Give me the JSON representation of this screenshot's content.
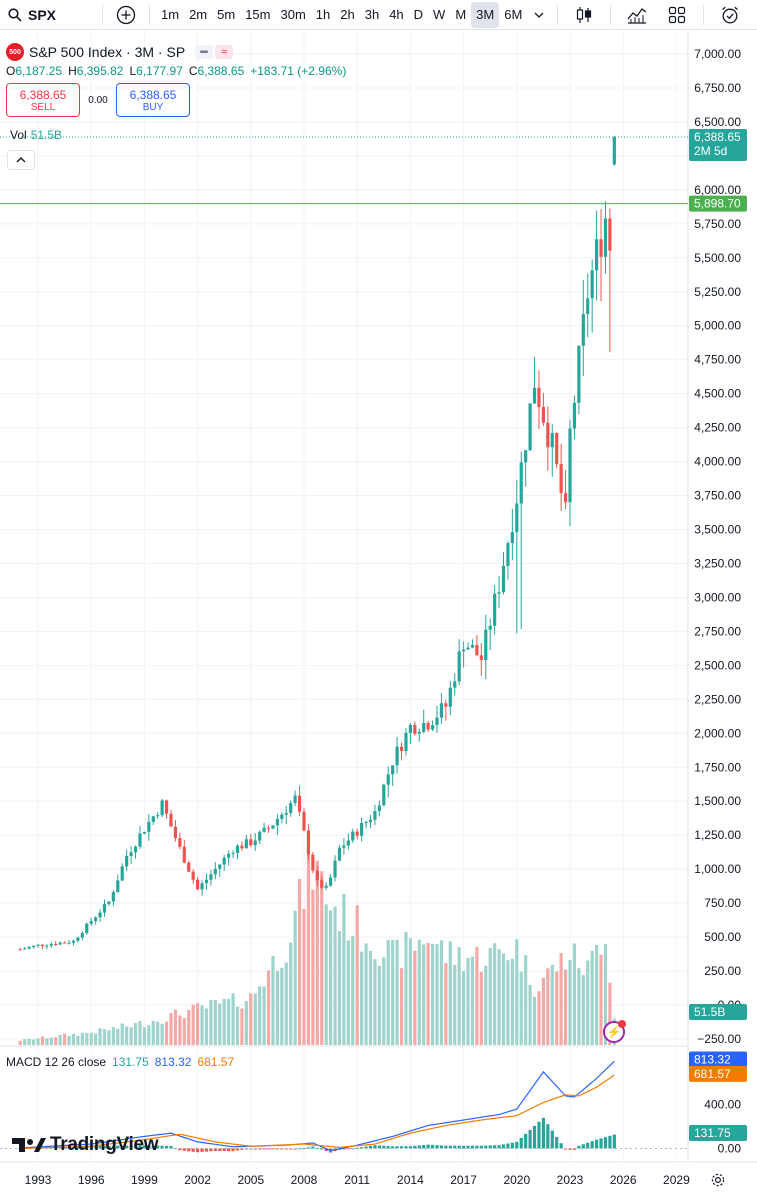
{
  "toolbar": {
    "symbol": "SPX",
    "timeframes": [
      "1m",
      "2m",
      "5m",
      "15m",
      "30m",
      "1h",
      "2h",
      "3h",
      "4h",
      "D",
      "W",
      "M",
      "3M",
      "6M"
    ],
    "active_timeframe": "3M"
  },
  "legend": {
    "logo_text": "500",
    "title": "S&P 500 Index · 3M · SP",
    "open_label": "O",
    "open": "6,187.25",
    "high_label": "H",
    "high": "6,395.82",
    "low_label": "L",
    "low": "6,177.97",
    "close_label": "C",
    "close": "6,388.65",
    "change": "+183.71 (+2.96%)",
    "sell_price": "6,388.65",
    "sell_label": "SELL",
    "spread": "0.00",
    "buy_price": "6,388.65",
    "buy_label": "BUY"
  },
  "volume_legend": {
    "label": "Vol",
    "value": "51.5B"
  },
  "macd_legend": {
    "label": "MACD 12 26 close",
    "hist": "131.75",
    "macd": "813.32",
    "signal": "681.57"
  },
  "brand": {
    "name": "TradingView"
  },
  "colors": {
    "up": "#26a69a",
    "down": "#ef5350",
    "vol_up": "#9fd4cd",
    "vol_down": "#f5a9a7",
    "macd": "#2962ff",
    "signal": "#f57c00",
    "hline": "#4caf50"
  },
  "chart_data": {
    "type": "candlestick",
    "symbol": "S&P 500 Index",
    "interval": "3M",
    "y_axis_ticks": [
      7000,
      6750,
      6500,
      6250,
      6000,
      5750,
      5500,
      5250,
      5000,
      4750,
      4500,
      4250,
      4000,
      3750,
      3500,
      3250,
      3000,
      2750,
      2500,
      2250,
      2000,
      1750,
      1500,
      1250,
      1000,
      750,
      500,
      250,
      0,
      -250
    ],
    "y_axis_tick_labels": [
      "7,000.00",
      "6,750.00",
      "6,500.00",
      "6,250.00",
      "6,000.00",
      "5,750.00",
      "5,500.00",
      "5,250.00",
      "5,000.00",
      "4,750.00",
      "4,500.00",
      "4,250.00",
      "4,000.00",
      "3,750.00",
      "3,500.00",
      "3,250.00",
      "3,000.00",
      "2,750.00",
      "2,500.00",
      "2,250.00",
      "2,000.00",
      "1,750.00",
      "1,500.00",
      "1,250.00",
      "1,000.00",
      "750.00",
      "500.00",
      "250.00",
      "0.00",
      "−250.00"
    ],
    "x_axis_ticks": [
      "1993",
      "1996",
      "1999",
      "2002",
      "2005",
      "2008",
      "2011",
      "2014",
      "2017",
      "2020",
      "2023",
      "2026",
      "2029"
    ],
    "price_ylim": [
      -250,
      7000
    ],
    "last_price": 6388.65,
    "last_price_label": "6,388.65",
    "last_price_countdown": "2M 5d",
    "horizontal_line": 5898.7,
    "horizontal_line_label": "5,898.70",
    "volume_last_label": "51.5B",
    "close_anchors": [
      [
        1992.0,
        410
      ],
      [
        1993.0,
        440
      ],
      [
        1995.0,
        470
      ],
      [
        1996.0,
        620
      ],
      [
        1997.0,
        760
      ],
      [
        1998.0,
        1100
      ],
      [
        1999.0,
        1300
      ],
      [
        2000.0,
        1480
      ],
      [
        2001.0,
        1150
      ],
      [
        2002.0,
        850
      ],
      [
        2003.0,
        1000
      ],
      [
        2004.0,
        1150
      ],
      [
        2005.0,
        1200
      ],
      [
        2006.0,
        1300
      ],
      [
        2007.5,
        1520
      ],
      [
        2008.7,
        900
      ],
      [
        2009.3,
        850
      ],
      [
        2010.0,
        1150
      ],
      [
        2011.0,
        1280
      ],
      [
        2012.0,
        1420
      ],
      [
        2013.0,
        1800
      ],
      [
        2014.0,
        2050
      ],
      [
        2015.0,
        2080
      ],
      [
        2016.0,
        2200
      ],
      [
        2017.0,
        2680
      ],
      [
        2018.0,
        2550
      ],
      [
        2019.0,
        3100
      ],
      [
        2020.0,
        3750
      ],
      [
        2021.0,
        4600
      ],
      [
        2022.0,
        4100
      ],
      [
        2022.75,
        3600
      ],
      [
        2023.0,
        4200
      ],
      [
        2024.0,
        5250
      ],
      [
        2025.0,
        5800
      ],
      [
        2025.25,
        5600
      ],
      [
        2025.6,
        6388.65
      ]
    ],
    "volume_ylim": [
      0,
      1150
    ],
    "volume_anchors": [
      [
        1992.0,
        30
      ],
      [
        1996.0,
        80
      ],
      [
        1999.0,
        140
      ],
      [
        2002.0,
        230
      ],
      [
        2005.0,
        300
      ],
      [
        2007.0,
        650
      ],
      [
        2008.5,
        1150
      ],
      [
        2009.5,
        900
      ],
      [
        2011.0,
        750
      ],
      [
        2013.0,
        560
      ],
      [
        2015.0,
        700
      ],
      [
        2016.0,
        580
      ],
      [
        2018.0,
        560
      ],
      [
        2020.0,
        620
      ],
      [
        2021.0,
        380
      ],
      [
        2023.0,
        580
      ],
      [
        2024.0,
        480
      ],
      [
        2025.0,
        750
      ],
      [
        2025.6,
        51.5
      ]
    ],
    "macd_ylim": [
      -60,
      900
    ],
    "macd_ticks": [
      400,
      0
    ],
    "macd_tick_labels": [
      "400.00",
      "0.00"
    ],
    "macd_anchors": [
      [
        1992.0,
        5
      ],
      [
        1996.0,
        40
      ],
      [
        1999.0,
        110
      ],
      [
        2000.5,
        140
      ],
      [
        2002.0,
        60
      ],
      [
        2004.0,
        15
      ],
      [
        2007.0,
        30
      ],
      [
        2008.5,
        50
      ],
      [
        2009.5,
        -20
      ],
      [
        2011.0,
        30
      ],
      [
        2013.0,
        110
      ],
      [
        2015.0,
        210
      ],
      [
        2017.0,
        260
      ],
      [
        2019.0,
        310
      ],
      [
        2020.0,
        360
      ],
      [
        2021.5,
        700
      ],
      [
        2022.75,
        480
      ],
      [
        2023.25,
        470
      ],
      [
        2024.5,
        640
      ],
      [
        2025.6,
        813.32
      ]
    ],
    "signal_anchors": [
      [
        1992.0,
        0
      ],
      [
        1996.0,
        20
      ],
      [
        1999.0,
        80
      ],
      [
        2001.0,
        130
      ],
      [
        2003.0,
        60
      ],
      [
        2005.0,
        20
      ],
      [
        2008.0,
        40
      ],
      [
        2010.0,
        10
      ],
      [
        2012.0,
        40
      ],
      [
        2014.0,
        140
      ],
      [
        2016.0,
        210
      ],
      [
        2018.0,
        260
      ],
      [
        2020.0,
        300
      ],
      [
        2021.5,
        420
      ],
      [
        2022.75,
        490
      ],
      [
        2023.5,
        480
      ],
      [
        2024.5,
        560
      ],
      [
        2025.6,
        681.57
      ]
    ],
    "macd_last_label": "813.32",
    "signal_last_label": "681.57",
    "hist_last_label": "131.75"
  }
}
